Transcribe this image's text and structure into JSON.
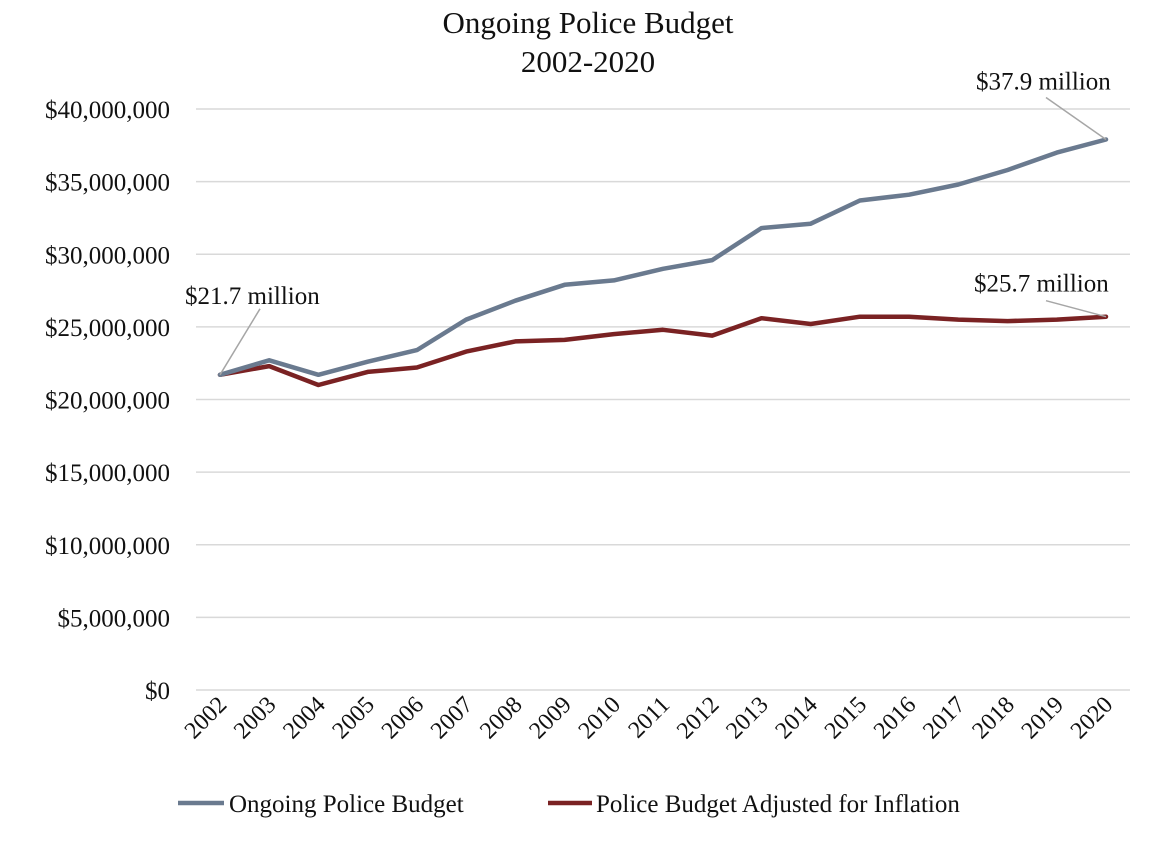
{
  "chart_data": {
    "type": "line",
    "title": "Ongoing Police Budget",
    "subtitle": "2002-2020",
    "xlabel": "",
    "ylabel": "",
    "x": [
      "2002",
      "2003",
      "2004",
      "2005",
      "2006",
      "2007",
      "2008",
      "2009",
      "2010",
      "2011",
      "2012",
      "2013",
      "2014",
      "2015",
      "2016",
      "2017",
      "2018",
      "2019",
      "2020"
    ],
    "ylim": [
      0,
      40000000
    ],
    "y_ticks": [
      {
        "value": 40000000,
        "label": "$40,000,000"
      },
      {
        "value": 35000000,
        "label": "$35,000,000"
      },
      {
        "value": 30000000,
        "label": "$30,000,000"
      },
      {
        "value": 25000000,
        "label": "$25,000,000"
      },
      {
        "value": 20000000,
        "label": "$20,000,000"
      },
      {
        "value": 15000000,
        "label": "$15,000,000"
      },
      {
        "value": 10000000,
        "label": "$10,000,000"
      },
      {
        "value": 5000000,
        "label": "$5,000,000"
      },
      {
        "value": 0,
        "label": "$0"
      }
    ],
    "grid": true,
    "legend_position": "bottom",
    "series": [
      {
        "name": "Ongoing Police Budget",
        "color": "#6a7a8f",
        "values": [
          21700000,
          22700000,
          21700000,
          22600000,
          23400000,
          25500000,
          26800000,
          27900000,
          28200000,
          29000000,
          29600000,
          31800000,
          32100000,
          33700000,
          34100000,
          34800000,
          35800000,
          37000000,
          37900000
        ]
      },
      {
        "name": "Police Budget Adjusted for Inflation",
        "color": "#7a2223",
        "values": [
          21700000,
          22300000,
          21000000,
          21900000,
          22200000,
          23300000,
          24000000,
          24100000,
          24500000,
          24800000,
          24400000,
          25600000,
          25200000,
          25700000,
          25700000,
          25500000,
          25400000,
          25500000,
          25700000
        ]
      }
    ],
    "annotations": [
      {
        "text": "$21.7 million",
        "series": 0,
        "x": "2002"
      },
      {
        "text": "$37.9 million",
        "series": 0,
        "x": "2020"
      },
      {
        "text": "$25.7 million",
        "series": 1,
        "x": "2020"
      }
    ]
  }
}
